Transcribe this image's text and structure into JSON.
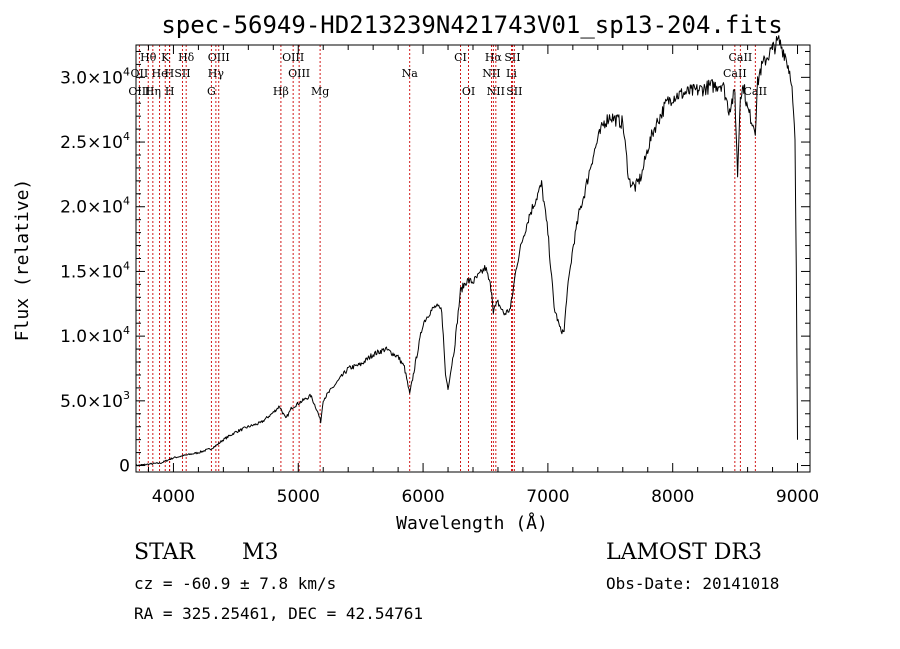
{
  "chart_data": {
    "type": "line",
    "title": "spec-56949-HD213239N421743V01_sp13-204.fits",
    "xlabel": "Wavelength (Å)",
    "ylabel": "Flux (relative)",
    "xlim": [
      3700,
      9100
    ],
    "ylim": [
      -500,
      32500
    ],
    "x_ticks": [
      4000,
      5000,
      6000,
      7000,
      8000,
      9000
    ],
    "x_tick_labels": [
      "4000",
      "5000",
      "6000",
      "7000",
      "8000",
      "9000"
    ],
    "y_ticks": [
      {
        "value": 0,
        "mantissa": "0",
        "exponent": ""
      },
      {
        "value": 5000,
        "mantissa": "5.0×10",
        "exponent": "3"
      },
      {
        "value": 10000,
        "mantissa": "1.0×10",
        "exponent": "4"
      },
      {
        "value": 15000,
        "mantissa": "1.5×10",
        "exponent": "4"
      },
      {
        "value": 20000,
        "mantissa": "2.0×10",
        "exponent": "4"
      },
      {
        "value": 25000,
        "mantissa": "2.5×10",
        "exponent": "4"
      },
      {
        "value": 30000,
        "mantissa": "3.0×10",
        "exponent": "4"
      }
    ],
    "series": [
      {
        "name": "spectrum",
        "x": [
          3700,
          3800,
          3900,
          4000,
          4100,
          4200,
          4300,
          4350,
          4400,
          4500,
          4600,
          4700,
          4800,
          4850,
          4900,
          4950,
          5000,
          5050,
          5100,
          5150,
          5180,
          5200,
          5300,
          5400,
          5500,
          5600,
          5700,
          5800,
          5850,
          5893,
          5950,
          6000,
          6050,
          6100,
          6150,
          6180,
          6200,
          6250,
          6300,
          6350,
          6400,
          6450,
          6500,
          6550,
          6563,
          6600,
          6650,
          6700,
          6750,
          6800,
          6850,
          6900,
          6950,
          7000,
          7030,
          7050,
          7100,
          7130,
          7150,
          7200,
          7250,
          7300,
          7350,
          7400,
          7450,
          7500,
          7550,
          7600,
          7650,
          7700,
          7750,
          7800,
          7850,
          7900,
          7950,
          8000,
          8100,
          8200,
          8300,
          8400,
          8450,
          8498,
          8520,
          8542,
          8570,
          8600,
          8662,
          8680,
          8700,
          8750,
          8800,
          8850,
          8900,
          8950,
          8980,
          8990,
          9000
        ],
        "values": [
          0,
          100,
          200,
          600,
          800,
          1000,
          1300,
          1600,
          2000,
          2600,
          3000,
          3300,
          4100,
          4600,
          3600,
          4500,
          4800,
          5100,
          5400,
          4300,
          3400,
          5100,
          6300,
          7500,
          7800,
          8600,
          9000,
          8400,
          7600,
          5500,
          8500,
          11000,
          11800,
          12300,
          12000,
          7000,
          6000,
          9000,
          13500,
          14300,
          14200,
          14700,
          15300,
          13500,
          12000,
          12600,
          11700,
          12100,
          15500,
          17600,
          19300,
          20500,
          21700,
          18000,
          14500,
          12200,
          10500,
          10300,
          13000,
          16800,
          19500,
          21300,
          23500,
          25200,
          26500,
          27000,
          26700,
          26500,
          22000,
          21500,
          22400,
          24500,
          26000,
          27000,
          28000,
          28500,
          28800,
          29000,
          29300,
          29500,
          27500,
          28800,
          22500,
          28800,
          29300,
          27500,
          26000,
          29500,
          30500,
          31500,
          32200,
          32800,
          31800,
          30000,
          25000,
          15000,
          2000
        ]
      }
    ],
    "line_markers": [
      {
        "label": "Hθ",
        "wavelength": 3798,
        "row": 0
      },
      {
        "label": "K",
        "wavelength": 3934,
        "row": 0
      },
      {
        "label": "Hδ",
        "wavelength": 4102,
        "row": 0
      },
      {
        "label": "OIII",
        "wavelength": 4363,
        "row": 0
      },
      {
        "label": "OIII",
        "wavelength": 4959,
        "row": 0
      },
      {
        "label": "CI",
        "wavelength": 6300,
        "row": 0
      },
      {
        "label": "Hα",
        "wavelength": 6563,
        "row": 0
      },
      {
        "label": "SII",
        "wavelength": 6716,
        "row": 0
      },
      {
        "label": "CaII",
        "wavelength": 8542,
        "row": 0
      },
      {
        "label": "OII",
        "wavelength": 3727,
        "row": 1
      },
      {
        "label": "He",
        "wavelength": 3889,
        "row": 1
      },
      {
        "label": "H",
        "wavelength": 3968,
        "row": 1
      },
      {
        "label": "SII",
        "wavelength": 4072,
        "row": 1
      },
      {
        "label": "Hγ",
        "wavelength": 4340,
        "row": 1
      },
      {
        "label": "OIII",
        "wavelength": 5007,
        "row": 1
      },
      {
        "label": "Na",
        "wavelength": 5893,
        "row": 1
      },
      {
        "label": "NII",
        "wavelength": 6548,
        "row": 1
      },
      {
        "label": "Li",
        "wavelength": 6708,
        "row": 1
      },
      {
        "label": "CaII",
        "wavelength": 8498,
        "row": 1
      },
      {
        "label": "OIII",
        "wavelength": 3727,
        "row": 2
      },
      {
        "label": "Hη",
        "wavelength": 3835,
        "row": 2
      },
      {
        "label": "H",
        "wavelength": 3970,
        "row": 2
      },
      {
        "label": "G",
        "wavelength": 4304,
        "row": 2
      },
      {
        "label": "Hβ",
        "wavelength": 4861,
        "row": 2
      },
      {
        "label": "Mg",
        "wavelength": 5175,
        "row": 2
      },
      {
        "label": "OI",
        "wavelength": 6364,
        "row": 2
      },
      {
        "label": "NII",
        "wavelength": 6583,
        "row": 2
      },
      {
        "label": "SII",
        "wavelength": 6731,
        "row": 2
      },
      {
        "label": "CaII",
        "wavelength": 8662,
        "row": 2
      }
    ],
    "line_marker_color": "#cc0000"
  },
  "footer": {
    "object_type": "STAR",
    "subclass": "M3",
    "velocity": "cz = -60.9 ± 7.8 km/s",
    "coords": "RA = 325.25461, DEC =  42.54761",
    "survey": "LAMOST DR3",
    "obs_date": "Obs-Date: 20141018"
  }
}
